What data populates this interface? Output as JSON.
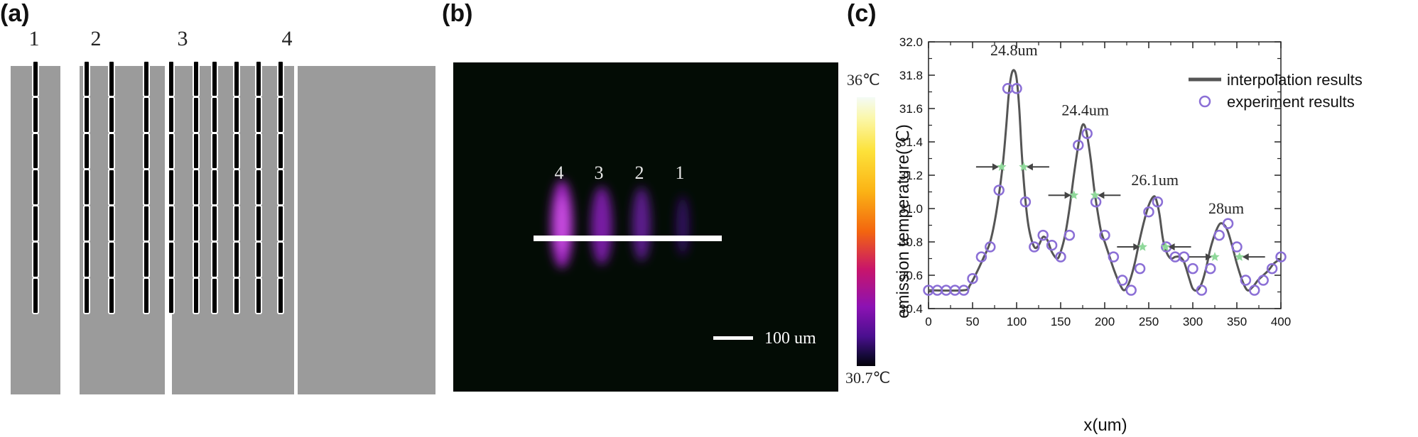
{
  "panels": {
    "a": {
      "label": "(a)",
      "strip_labels": [
        "1",
        "2",
        "3",
        "4"
      ],
      "slot_columns": [
        1,
        2,
        3,
        4
      ],
      "slot_rows": 7
    },
    "b": {
      "label": "(b)",
      "sample_labels": [
        "4",
        "3",
        "2",
        "1"
      ],
      "scale_bar_label": "100 um",
      "colorbar_max": "36℃",
      "colorbar_min": "30.7℃",
      "colormap": [
        "#f4fbf6",
        "#fde23a",
        "#f3650f",
        "#c8156b",
        "#8c12b3",
        "#150a3a"
      ]
    },
    "c": {
      "label": "(c)"
    }
  },
  "chart_data": {
    "type": "line",
    "xlabel": "x(um)",
    "ylabel": "emission temperature(℃)",
    "xlim": [
      0,
      400
    ],
    "ylim": [
      30.4,
      32.0
    ],
    "xticks": [
      0,
      50,
      100,
      150,
      200,
      250,
      300,
      350,
      400
    ],
    "yticks": [
      30.4,
      30.6,
      30.8,
      31.0,
      31.2,
      31.4,
      31.6,
      31.8,
      32.0
    ],
    "grid": false,
    "legend_position": "top-right",
    "colors": {
      "line": "#555555",
      "marker": "#8b6fd6",
      "star": "#8fd89a",
      "arrow": "#444444"
    },
    "series": [
      {
        "name": "interpolation results",
        "style": "line",
        "x": [
          0,
          40,
          47,
          55,
          62,
          70,
          77,
          84,
          88,
          91,
          94,
          97,
          100,
          103,
          106,
          110,
          114,
          120,
          125,
          130,
          135,
          140,
          146,
          150,
          155,
          160,
          165,
          170,
          174,
          177,
          180,
          184,
          188,
          192,
          196,
          200,
          205,
          210,
          216,
          222,
          228,
          234,
          240,
          245,
          250,
          255,
          258,
          262,
          266,
          270,
          275,
          280,
          285,
          290,
          296,
          300,
          305,
          310,
          315,
          320,
          326,
          331,
          336,
          340,
          345,
          350,
          356,
          362,
          368,
          374,
          380,
          386,
          392,
          400
        ],
        "y": [
          30.51,
          30.51,
          30.54,
          30.62,
          30.7,
          30.8,
          30.98,
          31.25,
          31.48,
          31.68,
          31.8,
          31.83,
          31.78,
          31.6,
          31.32,
          31.05,
          30.88,
          30.77,
          30.78,
          30.83,
          30.81,
          30.74,
          30.7,
          30.74,
          30.84,
          31.0,
          31.2,
          31.38,
          31.49,
          31.5,
          31.44,
          31.3,
          31.12,
          30.98,
          30.86,
          30.8,
          30.72,
          30.64,
          30.56,
          30.51,
          30.56,
          30.67,
          30.82,
          30.93,
          31.02,
          31.07,
          31.06,
          30.97,
          30.82,
          30.74,
          30.7,
          30.71,
          30.71,
          30.68,
          30.58,
          30.52,
          30.51,
          30.55,
          30.64,
          30.76,
          30.86,
          30.91,
          30.9,
          30.86,
          30.77,
          30.67,
          30.57,
          30.51,
          30.53,
          30.57,
          30.6,
          30.63,
          30.67,
          30.7
        ]
      },
      {
        "name": "experiment results",
        "style": "circles",
        "x": [
          0,
          10,
          20,
          30,
          40,
          50,
          60,
          70,
          80,
          90,
          100,
          110,
          120,
          130,
          140,
          150,
          160,
          170,
          180,
          190,
          200,
          210,
          220,
          230,
          240,
          250,
          260,
          270,
          280,
          290,
          300,
          310,
          320,
          330,
          340,
          350,
          360,
          370,
          380,
          390,
          400
        ],
        "y": [
          30.51,
          30.51,
          30.51,
          30.51,
          30.51,
          30.58,
          30.71,
          30.77,
          31.11,
          31.72,
          31.72,
          31.04,
          30.77,
          30.84,
          30.78,
          30.71,
          30.84,
          31.38,
          31.45,
          31.04,
          30.84,
          30.71,
          30.57,
          30.51,
          30.64,
          30.98,
          31.04,
          30.77,
          30.71,
          30.71,
          30.64,
          30.51,
          30.64,
          30.84,
          30.91,
          30.77,
          30.57,
          30.51,
          30.57,
          30.64,
          30.71
        ]
      }
    ],
    "fwhm_markers": [
      {
        "x": [
          83,
          108
        ],
        "y": 31.25
      },
      {
        "x": [
          165,
          189
        ],
        "y": 31.08
      },
      {
        "x": [
          243,
          269
        ],
        "y": 30.77
      },
      {
        "x": [
          325,
          353
        ],
        "y": 30.71
      }
    ],
    "annotations": [
      {
        "text": "24.8um",
        "x": 97,
        "y": 31.92
      },
      {
        "text": "24.4um",
        "x": 178,
        "y": 31.56
      },
      {
        "text": "26.1um",
        "x": 257,
        "y": 31.14
      },
      {
        "text": "28um",
        "x": 338,
        "y": 30.97
      }
    ]
  }
}
